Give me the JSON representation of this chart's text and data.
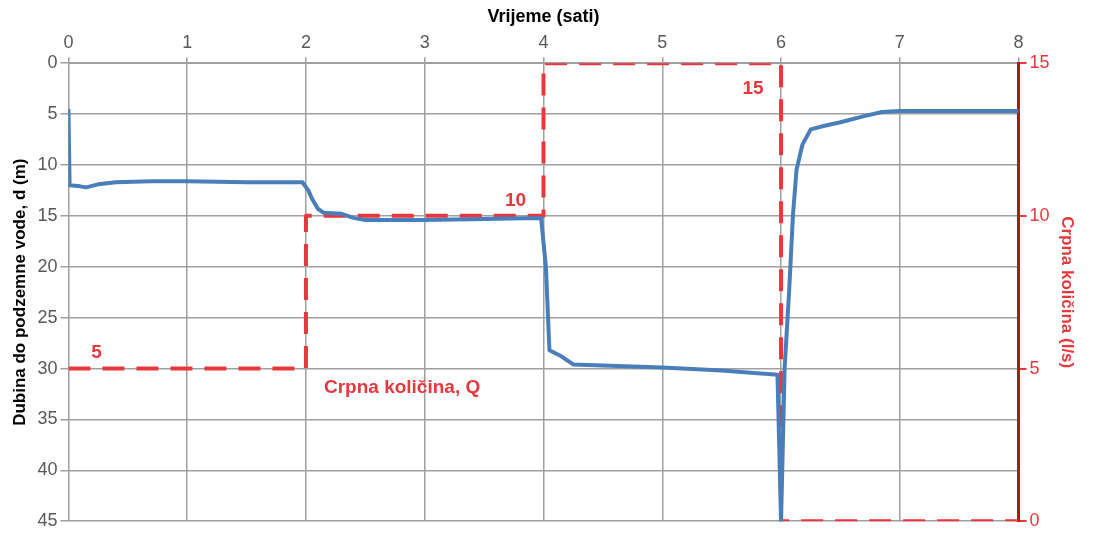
{
  "chart_data": {
    "type": "line",
    "xlabel": "Vrijeme (sati)",
    "ylabel": "Dubina do podzemne vode, d (m)",
    "y2label": "Crpna količina (l/s)",
    "xlim": [
      0,
      8
    ],
    "xticks": [
      0,
      1,
      2,
      3,
      4,
      5,
      6,
      7,
      8
    ],
    "ylim": [
      45,
      0
    ],
    "yticks": [
      0,
      5,
      10,
      15,
      20,
      25,
      30,
      35,
      40,
      45
    ],
    "y2lim": [
      0,
      15
    ],
    "y2ticks": [
      0,
      5,
      10,
      15
    ],
    "grid": true,
    "legend": false,
    "marker": "none",
    "series": [
      {
        "color": "#4a7ebb",
        "line_style": "solid",
        "x": [
          0,
          0.01,
          0.1,
          0.15,
          0.25,
          0.4,
          0.7,
          1,
          1.5,
          1.97,
          2.02,
          2.05,
          2.1,
          2.15,
          2.3,
          2.4,
          2.5,
          3,
          3.5,
          3.98,
          4.02,
          4.05,
          4.15,
          4.25,
          4.5,
          5,
          5.5,
          5.97,
          6.0,
          6.03,
          6.07,
          6.1,
          6.13,
          6.18,
          6.25,
          6.35,
          6.5,
          6.7,
          6.85,
          7,
          8
        ],
        "values": [
          4.5,
          12,
          12.1,
          12.2,
          11.9,
          11.7,
          11.6,
          11.6,
          11.7,
          11.7,
          12.5,
          13.3,
          14.3,
          14.7,
          14.8,
          15.2,
          15.4,
          15.4,
          15.3,
          15.2,
          20,
          28.2,
          28.8,
          29.6,
          29.7,
          29.9,
          30.2,
          30.6,
          45,
          30,
          22,
          15,
          10.5,
          8,
          6.5,
          6.2,
          5.8,
          5.2,
          4.8,
          4.7,
          4.7
        ]
      },
      {
        "name": "Crpna količina, Q",
        "color": "#e8383d",
        "line_style": "dashed",
        "axis": "y2",
        "type": "step",
        "x": [
          0,
          2,
          2,
          4,
          4,
          6,
          6,
          8
        ],
        "values": [
          5,
          5,
          10,
          10,
          15,
          15,
          0,
          0
        ],
        "value_labels": [
          "5",
          null,
          null,
          "10",
          null,
          "15",
          null,
          null
        ]
      }
    ]
  }
}
